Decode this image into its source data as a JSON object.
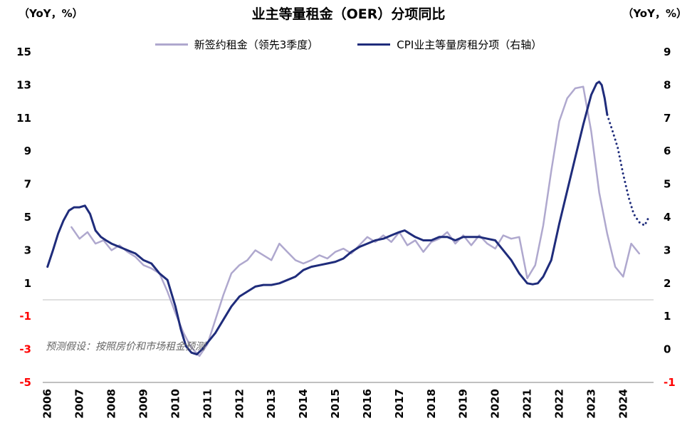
{
  "chart_data": {
    "type": "line",
    "title": "业主等量租金（OER）分项同比",
    "annotation": "预测假设：按照房价和市场租金预测",
    "legend_position": "top",
    "grid": "zero-line-only",
    "zero_gridline_color": "#bfbfbf",
    "axis_line_color": "#9a9a9a",
    "negative_tick_color": "#FF0000",
    "left_axis": {
      "unit": "（YoY，%）",
      "min": -5,
      "max": 15,
      "ticks": [
        15,
        13,
        11,
        9,
        7,
        5,
        3,
        1,
        -1,
        -3,
        -5
      ]
    },
    "right_axis": {
      "unit": "（YoY，%）",
      "min": -1,
      "max": 9,
      "ticks": [
        9,
        8,
        7,
        6,
        5,
        4,
        3,
        2,
        1,
        0,
        -1
      ]
    },
    "x_axis": {
      "min": 2005.85,
      "max": 2024.95,
      "tick_labels": [
        "2006",
        "2007",
        "2008",
        "2009",
        "2010",
        "2011",
        "2012",
        "2013",
        "2014",
        "2015",
        "2016",
        "2017",
        "2018",
        "2019",
        "2020",
        "2021",
        "2022",
        "2023",
        "2024"
      ]
    },
    "series": [
      {
        "name": "新签约租金（领先3季度）",
        "axis": "left",
        "color": "#AFA8CE",
        "width": 2.5,
        "style": "solid",
        "in_legend": true,
        "points": [
          [
            2006.75,
            4.4
          ],
          [
            2007.0,
            3.7
          ],
          [
            2007.25,
            4.1
          ],
          [
            2007.5,
            3.4
          ],
          [
            2007.75,
            3.6
          ],
          [
            2008.0,
            3.0
          ],
          [
            2008.25,
            3.3
          ],
          [
            2008.5,
            2.9
          ],
          [
            2008.75,
            2.6
          ],
          [
            2009.0,
            2.1
          ],
          [
            2009.25,
            1.9
          ],
          [
            2009.5,
            1.6
          ],
          [
            2009.75,
            0.5
          ],
          [
            2010.0,
            -0.8
          ],
          [
            2010.25,
            -2.0
          ],
          [
            2010.5,
            -2.9
          ],
          [
            2010.75,
            -3.4
          ],
          [
            2011.0,
            -2.7
          ],
          [
            2011.25,
            -1.2
          ],
          [
            2011.5,
            0.3
          ],
          [
            2011.75,
            1.6
          ],
          [
            2012.0,
            2.1
          ],
          [
            2012.25,
            2.4
          ],
          [
            2012.5,
            3.0
          ],
          [
            2012.75,
            2.7
          ],
          [
            2013.0,
            2.4
          ],
          [
            2013.25,
            3.4
          ],
          [
            2013.5,
            2.9
          ],
          [
            2013.75,
            2.4
          ],
          [
            2014.0,
            2.2
          ],
          [
            2014.25,
            2.4
          ],
          [
            2014.5,
            2.7
          ],
          [
            2014.75,
            2.5
          ],
          [
            2015.0,
            2.9
          ],
          [
            2015.25,
            3.1
          ],
          [
            2015.5,
            2.8
          ],
          [
            2015.75,
            3.3
          ],
          [
            2016.0,
            3.8
          ],
          [
            2016.25,
            3.5
          ],
          [
            2016.5,
            3.9
          ],
          [
            2016.75,
            3.5
          ],
          [
            2017.0,
            4.1
          ],
          [
            2017.25,
            3.3
          ],
          [
            2017.5,
            3.6
          ],
          [
            2017.75,
            2.9
          ],
          [
            2018.0,
            3.5
          ],
          [
            2018.25,
            3.7
          ],
          [
            2018.5,
            4.1
          ],
          [
            2018.75,
            3.4
          ],
          [
            2019.0,
            3.9
          ],
          [
            2019.25,
            3.3
          ],
          [
            2019.5,
            3.9
          ],
          [
            2019.75,
            3.4
          ],
          [
            2020.0,
            3.1
          ],
          [
            2020.25,
            3.9
          ],
          [
            2020.5,
            3.7
          ],
          [
            2020.75,
            3.8
          ],
          [
            2021.0,
            1.3
          ],
          [
            2021.25,
            2.1
          ],
          [
            2021.5,
            4.5
          ],
          [
            2021.75,
            7.8
          ],
          [
            2022.0,
            10.8
          ],
          [
            2022.25,
            12.2
          ],
          [
            2022.5,
            12.8
          ],
          [
            2022.75,
            12.9
          ],
          [
            2023.0,
            10.2
          ],
          [
            2023.25,
            6.5
          ],
          [
            2023.5,
            4.0
          ],
          [
            2023.75,
            2.0
          ],
          [
            2024.0,
            1.4
          ],
          [
            2024.25,
            3.4
          ],
          [
            2024.5,
            2.8
          ]
        ]
      },
      {
        "name": "CPI业主等量房租分项（右轴）",
        "axis": "right",
        "color": "#1F2C7B",
        "width": 3,
        "style": "solid",
        "in_legend": true,
        "points": [
          [
            2006.0,
            2.5
          ],
          [
            2006.17,
            3.0
          ],
          [
            2006.33,
            3.5
          ],
          [
            2006.5,
            3.9
          ],
          [
            2006.67,
            4.2
          ],
          [
            2006.83,
            4.3
          ],
          [
            2007.0,
            4.3
          ],
          [
            2007.17,
            4.35
          ],
          [
            2007.33,
            4.1
          ],
          [
            2007.5,
            3.6
          ],
          [
            2007.67,
            3.4
          ],
          [
            2007.83,
            3.3
          ],
          [
            2008.0,
            3.2
          ],
          [
            2008.25,
            3.1
          ],
          [
            2008.5,
            3.0
          ],
          [
            2008.75,
            2.9
          ],
          [
            2009.0,
            2.7
          ],
          [
            2009.25,
            2.6
          ],
          [
            2009.5,
            2.3
          ],
          [
            2009.75,
            2.1
          ],
          [
            2010.0,
            1.3
          ],
          [
            2010.17,
            0.6
          ],
          [
            2010.33,
            0.1
          ],
          [
            2010.5,
            -0.1
          ],
          [
            2010.67,
            -0.15
          ],
          [
            2010.83,
            0.0
          ],
          [
            2011.0,
            0.2
          ],
          [
            2011.25,
            0.5
          ],
          [
            2011.5,
            0.9
          ],
          [
            2011.75,
            1.3
          ],
          [
            2012.0,
            1.6
          ],
          [
            2012.25,
            1.75
          ],
          [
            2012.5,
            1.9
          ],
          [
            2012.75,
            1.95
          ],
          [
            2013.0,
            1.95
          ],
          [
            2013.25,
            2.0
          ],
          [
            2013.5,
            2.1
          ],
          [
            2013.75,
            2.2
          ],
          [
            2014.0,
            2.4
          ],
          [
            2014.25,
            2.5
          ],
          [
            2014.5,
            2.55
          ],
          [
            2014.75,
            2.6
          ],
          [
            2015.0,
            2.65
          ],
          [
            2015.25,
            2.75
          ],
          [
            2015.5,
            2.95
          ],
          [
            2015.75,
            3.1
          ],
          [
            2016.0,
            3.2
          ],
          [
            2016.25,
            3.3
          ],
          [
            2016.5,
            3.35
          ],
          [
            2016.75,
            3.45
          ],
          [
            2017.0,
            3.55
          ],
          [
            2017.17,
            3.6
          ],
          [
            2017.33,
            3.5
          ],
          [
            2017.5,
            3.4
          ],
          [
            2017.75,
            3.3
          ],
          [
            2018.0,
            3.3
          ],
          [
            2018.25,
            3.4
          ],
          [
            2018.5,
            3.4
          ],
          [
            2018.75,
            3.3
          ],
          [
            2019.0,
            3.4
          ],
          [
            2019.25,
            3.4
          ],
          [
            2019.5,
            3.4
          ],
          [
            2019.75,
            3.35
          ],
          [
            2020.0,
            3.3
          ],
          [
            2020.25,
            3.0
          ],
          [
            2020.5,
            2.7
          ],
          [
            2020.75,
            2.3
          ],
          [
            2021.0,
            2.0
          ],
          [
            2021.17,
            1.97
          ],
          [
            2021.33,
            2.0
          ],
          [
            2021.5,
            2.2
          ],
          [
            2021.75,
            2.7
          ],
          [
            2022.0,
            3.8
          ],
          [
            2022.25,
            4.8
          ],
          [
            2022.5,
            5.8
          ],
          [
            2022.75,
            6.8
          ],
          [
            2023.0,
            7.7
          ],
          [
            2023.17,
            8.05
          ],
          [
            2023.25,
            8.1
          ],
          [
            2023.33,
            8.0
          ],
          [
            2023.42,
            7.6
          ],
          [
            2023.5,
            7.1
          ]
        ]
      },
      {
        "name": "CPI业主等量房租分项（右轴）预测",
        "axis": "right",
        "color": "#1F2C7B",
        "width": 3,
        "style": "dotted",
        "in_legend": false,
        "points": [
          [
            2023.5,
            7.1
          ],
          [
            2023.67,
            6.6
          ],
          [
            2023.83,
            6.1
          ],
          [
            2024.0,
            5.3
          ],
          [
            2024.17,
            4.6
          ],
          [
            2024.33,
            4.1
          ],
          [
            2024.5,
            3.85
          ],
          [
            2024.67,
            3.75
          ],
          [
            2024.8,
            4.0
          ]
        ]
      }
    ]
  }
}
